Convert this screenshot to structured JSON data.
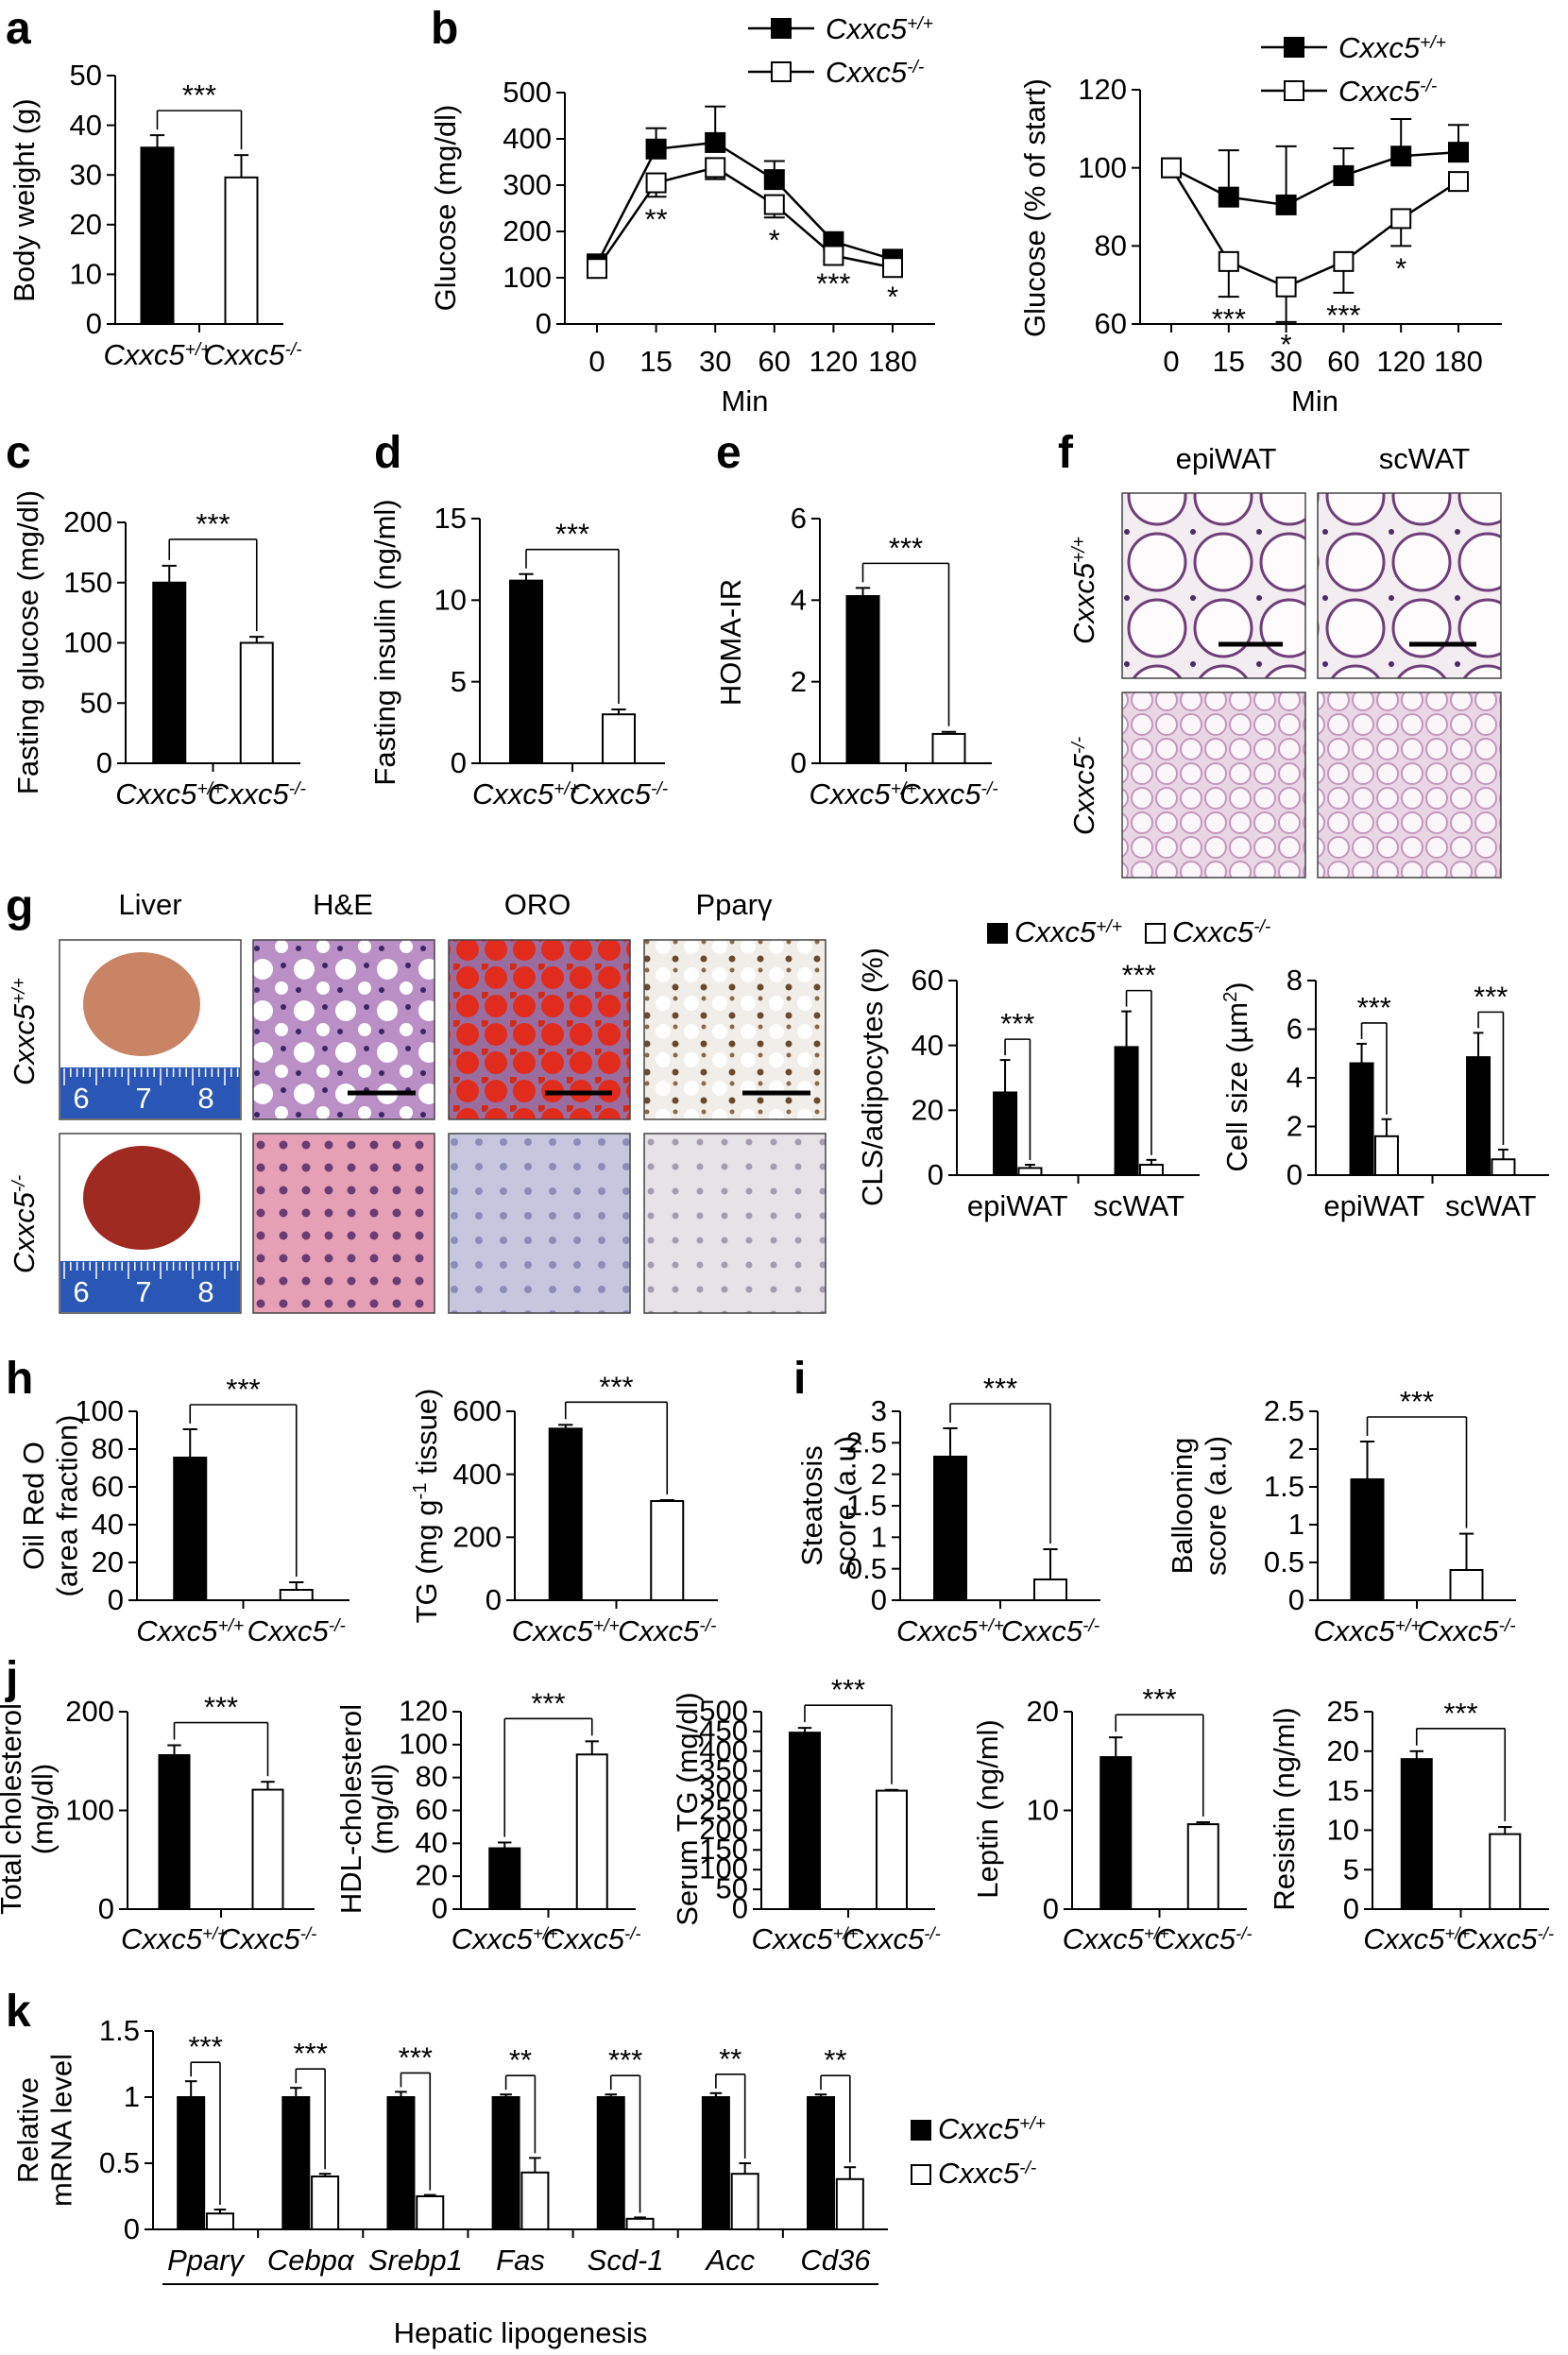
{
  "figure": {
    "panel_labels": [
      "a",
      "b",
      "c",
      "d",
      "e",
      "f",
      "g",
      "h",
      "i",
      "j",
      "k"
    ],
    "genotypes": [
      "Cxxc5+/+",
      "Cxxc5-/-"
    ],
    "colors": {
      "wt": "#000000",
      "ko": "#ffffff",
      "outline": "#000000"
    },
    "hepatic_group_label": "Hepatic lipogenesis"
  },
  "histology": {
    "f": {
      "columns": [
        "epiWAT",
        "scWAT"
      ],
      "rows": [
        "Cxxc5+/+",
        "Cxxc5-/-"
      ]
    },
    "g": {
      "columns": [
        "Liver",
        "H&E",
        "ORO",
        "Pparγ"
      ],
      "rows": [
        "Cxxc5+/+",
        "Cxxc5-/-"
      ],
      "ruler_ticks": [
        "6",
        "7",
        "8"
      ]
    }
  },
  "chart_data": [
    {
      "id": "a",
      "type": "bar",
      "ylabel": "Body weight (g)",
      "ylim": [
        0,
        50
      ],
      "yticks": [
        0,
        10,
        20,
        30,
        40,
        50
      ],
      "categories": [
        "Cxxc5+/+",
        "Cxxc5-/-"
      ],
      "values": [
        35.5,
        29.5
      ],
      "errors": [
        2.5,
        4.5
      ],
      "significance": [
        "***"
      ]
    },
    {
      "id": "b1",
      "type": "line",
      "ylabel": "Glucose (mg/dl)",
      "xlabel": "Min",
      "ylim": [
        0,
        500
      ],
      "yticks": [
        0,
        100,
        200,
        300,
        400,
        500
      ],
      "x": [
        "0",
        "15",
        "30",
        "60",
        "120",
        "180"
      ],
      "series": [
        {
          "name": "Cxxc5+/+",
          "values": [
            130,
            378,
            392,
            312,
            178,
            140
          ],
          "errors": [
            15,
            45,
            78,
            40,
            15,
            10
          ]
        },
        {
          "name": "Cxxc5-/-",
          "values": [
            120,
            305,
            338,
            258,
            148,
            122
          ],
          "errors": [
            12,
            30,
            25,
            28,
            12,
            15
          ]
        }
      ],
      "significance": [
        "",
        "**",
        "",
        "*",
        "***",
        "*"
      ]
    },
    {
      "id": "b2",
      "type": "line",
      "ylabel": "Glucose (% of start)",
      "xlabel": "Min",
      "ylim": [
        60,
        120
      ],
      "yticks": [
        60,
        80,
        100,
        120
      ],
      "x": [
        "0",
        "15",
        "30",
        "60",
        "120",
        "180"
      ],
      "series": [
        {
          "name": "Cxxc5+/+",
          "values": [
            100,
            92.5,
            90.5,
            98,
            103,
            104
          ],
          "errors": [
            0,
            12,
            15,
            7,
            9.5,
            7
          ]
        },
        {
          "name": "Cxxc5-/-",
          "values": [
            100,
            76,
            69.5,
            76,
            87,
            96.5
          ],
          "errors": [
            0,
            9,
            9,
            8,
            7,
            2
          ]
        }
      ],
      "significance": [
        "",
        "***",
        "*",
        "***",
        "*",
        ""
      ]
    },
    {
      "id": "c",
      "type": "bar",
      "ylabel": "Fasting glucose (mg/dl)",
      "ylim": [
        0,
        200
      ],
      "yticks": [
        0,
        50,
        100,
        150,
        200
      ],
      "categories": [
        "Cxxc5+/+",
        "Cxxc5-/-"
      ],
      "values": [
        150,
        100
      ],
      "errors": [
        14,
        5
      ],
      "significance": [
        "***"
      ]
    },
    {
      "id": "d",
      "type": "bar",
      "ylabel": "Fasting insulin (ng/ml)",
      "ylim": [
        0,
        15
      ],
      "yticks": [
        0,
        5,
        10,
        15
      ],
      "categories": [
        "Cxxc5+/+",
        "Cxxc5-/-"
      ],
      "values": [
        11.2,
        3.0
      ],
      "errors": [
        0.4,
        0.3
      ],
      "significance": [
        "***"
      ]
    },
    {
      "id": "e",
      "type": "bar",
      "ylabel": "HOMA-IR",
      "ylim": [
        0,
        6
      ],
      "yticks": [
        0,
        2,
        4,
        6
      ],
      "categories": [
        "Cxxc5+/+",
        "Cxxc5-/-"
      ],
      "values": [
        4.1,
        0.72
      ],
      "errors": [
        0.2,
        0.05
      ],
      "significance": [
        "***"
      ]
    },
    {
      "id": "g1",
      "type": "bar",
      "ylabel": "CLS/adipocytes (%)",
      "ylim": [
        0,
        60
      ],
      "yticks": [
        0,
        20,
        40,
        60
      ],
      "categories": [
        "epiWAT",
        "scWAT"
      ],
      "series": [
        {
          "name": "Cxxc5+/+",
          "values": [
            25.5,
            39.5
          ],
          "errors": [
            10,
            11
          ]
        },
        {
          "name": "Cxxc5-/-",
          "values": [
            2.2,
            3.2
          ],
          "errors": [
            1,
            1.5
          ]
        }
      ],
      "significance": [
        "***",
        "***"
      ]
    },
    {
      "id": "g2",
      "type": "bar",
      "ylabel": "Cell size (µm2)",
      "ylim": [
        0,
        8
      ],
      "yticks": [
        0,
        2,
        4,
        6,
        8
      ],
      "categories": [
        "epiWAT",
        "scWAT"
      ],
      "series": [
        {
          "name": "Cxxc5+/+",
          "values": [
            4.6,
            4.85
          ],
          "errors": [
            0.8,
            1.0
          ]
        },
        {
          "name": "Cxxc5-/-",
          "values": [
            1.6,
            0.65
          ],
          "errors": [
            0.7,
            0.4
          ]
        }
      ],
      "significance": [
        "***",
        "***"
      ]
    },
    {
      "id": "h1",
      "type": "bar",
      "ylabel": "Oil Red O (area fraction)",
      "ylim": [
        0,
        100
      ],
      "yticks": [
        0,
        20,
        40,
        60,
        80,
        100
      ],
      "categories": [
        "Cxxc5+/+",
        "Cxxc5-/-"
      ],
      "values": [
        75.5,
        5.5
      ],
      "errors": [
        15,
        4
      ],
      "significance": [
        "***"
      ]
    },
    {
      "id": "h2",
      "type": "bar",
      "ylabel": "TG (mg g-1 tissue)",
      "ylim": [
        0,
        600
      ],
      "yticks": [
        0,
        200,
        400,
        600
      ],
      "categories": [
        "Cxxc5+/+",
        "Cxxc5-/-"
      ],
      "values": [
        545,
        315
      ],
      "errors": [
        12,
        3
      ],
      "significance": [
        "***"
      ]
    },
    {
      "id": "i1",
      "type": "bar",
      "ylabel": "Steatosis score (a.u)",
      "ylim": [
        0,
        3
      ],
      "yticks": [
        0,
        0.5,
        1,
        1.5,
        2,
        2.5,
        3
      ],
      "categories": [
        "Cxxc5+/+",
        "Cxxc5-/-"
      ],
      "values": [
        2.28,
        0.33
      ],
      "errors": [
        0.45,
        0.48
      ],
      "significance": [
        "***"
      ]
    },
    {
      "id": "i2",
      "type": "bar",
      "ylabel": "Ballooning score (a.u)",
      "ylim": [
        0,
        2.5
      ],
      "yticks": [
        0,
        0.5,
        1,
        1.5,
        2,
        2.5
      ],
      "categories": [
        "Cxxc5+/+",
        "Cxxc5-/-"
      ],
      "values": [
        1.6,
        0.4
      ],
      "errors": [
        0.5,
        0.48
      ],
      "significance": [
        "***"
      ]
    },
    {
      "id": "j1",
      "type": "bar",
      "ylabel": "Total cholesterol (mg/dl)",
      "ylim": [
        0,
        200
      ],
      "yticks": [
        0,
        100,
        200
      ],
      "categories": [
        "Cxxc5+/+",
        "Cxxc5-/-"
      ],
      "values": [
        156,
        121
      ],
      "errors": [
        10,
        8
      ],
      "significance": [
        "***"
      ]
    },
    {
      "id": "j2",
      "type": "bar",
      "ylabel": "HDL-cholesterol (mg/dl)",
      "ylim": [
        0,
        120
      ],
      "yticks": [
        0,
        20,
        40,
        60,
        80,
        100,
        120
      ],
      "categories": [
        "Cxxc5+/+",
        "Cxxc5-/-"
      ],
      "values": [
        37,
        94
      ],
      "errors": [
        3.5,
        8
      ],
      "significance": [
        "***"
      ]
    },
    {
      "id": "j3",
      "type": "bar",
      "ylabel": "Serum TG (mg/dl)",
      "ylim": [
        0,
        500
      ],
      "yticks": [
        0,
        50,
        100,
        150,
        200,
        250,
        300,
        350,
        400,
        450,
        500
      ],
      "categories": [
        "Cxxc5+/+",
        "Cxxc5-/-"
      ],
      "values": [
        447,
        300
      ],
      "errors": [
        12,
        2
      ],
      "significance": [
        "***"
      ]
    },
    {
      "id": "j4",
      "type": "bar",
      "ylabel": "Leptin (ng/ml)",
      "ylim": [
        0,
        20
      ],
      "yticks": [
        0,
        10,
        20
      ],
      "categories": [
        "Cxxc5+/+",
        "Cxxc5-/-"
      ],
      "values": [
        15.4,
        8.6
      ],
      "errors": [
        2,
        0.2
      ],
      "significance": [
        "***"
      ]
    },
    {
      "id": "j5",
      "type": "bar",
      "ylabel": "Resistin (ng/ml)",
      "ylim": [
        0,
        25
      ],
      "yticks": [
        0,
        5,
        10,
        15,
        20,
        25
      ],
      "categories": [
        "Cxxc5+/+",
        "Cxxc5-/-"
      ],
      "values": [
        19,
        9.5
      ],
      "errors": [
        1,
        0.9
      ],
      "significance": [
        "***"
      ]
    },
    {
      "id": "k",
      "type": "bar",
      "ylabel": "Relative mRNA level",
      "ylim": [
        0,
        1.5
      ],
      "yticks": [
        0,
        0.5,
        1,
        1.5
      ],
      "categories": [
        "Pparγ",
        "Cebpα",
        "Srebp1",
        "Fas",
        "Scd-1",
        "Acc",
        "Cd36"
      ],
      "series": [
        {
          "name": "Cxxc5+/+",
          "values": [
            1.0,
            1.0,
            1.0,
            1.0,
            1.0,
            1.0,
            1.0
          ],
          "errors": [
            0.12,
            0.07,
            0.04,
            0.02,
            0.02,
            0.03,
            0.02
          ]
        },
        {
          "name": "Cxxc5-/-",
          "values": [
            0.12,
            0.4,
            0.25,
            0.43,
            0.08,
            0.42,
            0.38
          ],
          "errors": [
            0.03,
            0.02,
            0.01,
            0.11,
            0.01,
            0.08,
            0.09
          ]
        }
      ],
      "significance": [
        "***",
        "***",
        "***",
        "**",
        "***",
        "**",
        "**"
      ]
    }
  ]
}
